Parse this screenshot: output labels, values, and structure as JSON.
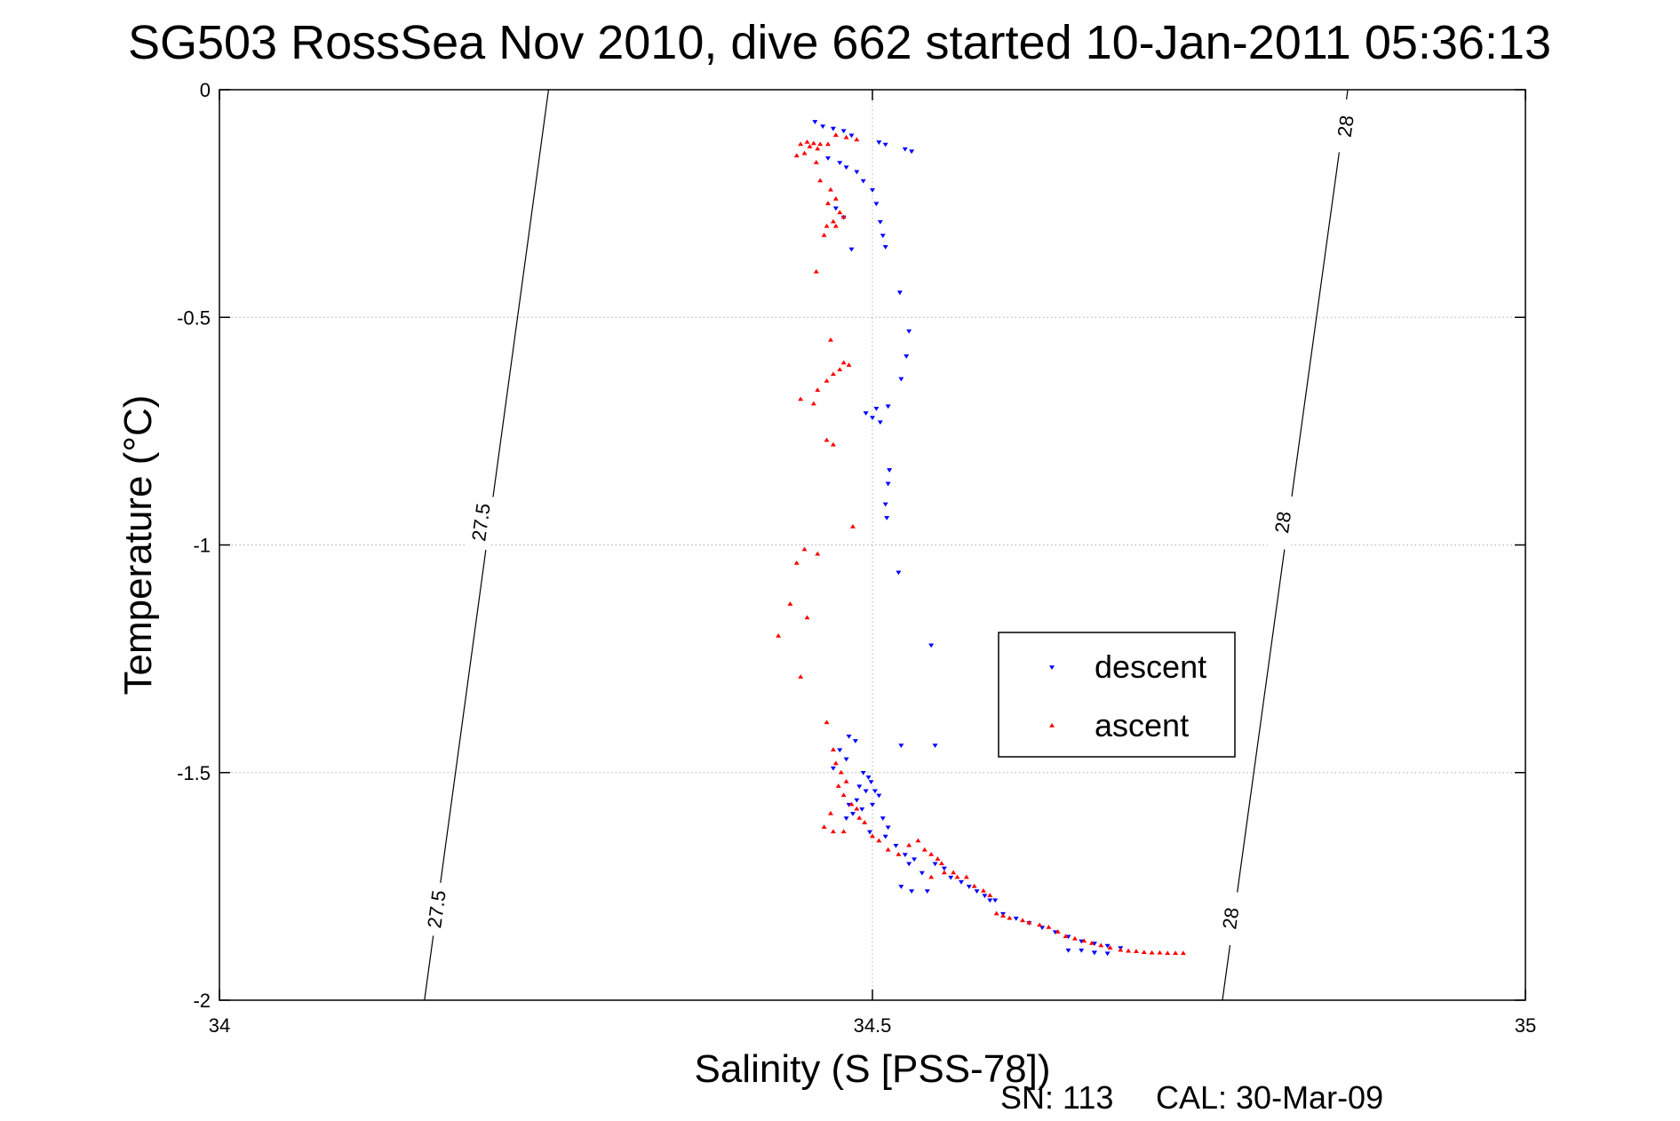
{
  "chart_data": {
    "type": "scatter",
    "title": "SG503 RossSea Nov 2010, dive 662 started 10-Jan-2011 05:36:13",
    "xlabel": "Salinity (S [PSS-78])",
    "ylabel": "Temperature (°C)",
    "xlim": [
      34,
      35
    ],
    "ylim": [
      -2,
      0
    ],
    "x_ticks": [
      34,
      34.5,
      35
    ],
    "x_tick_labels": [
      "34",
      "34.5",
      "35"
    ],
    "y_ticks": [
      0,
      -0.5,
      -1,
      -1.5,
      -2
    ],
    "y_tick_labels": [
      "0",
      "-0.5",
      "-1",
      "-1.5",
      "-2"
    ],
    "grid": true,
    "legend_position": "center-right",
    "density_contours": [
      {
        "label": "27.5",
        "points": [
          [
            34.252,
            0
          ],
          [
            34.157,
            -2
          ]
        ],
        "label_positions": [
          [
            34.2,
            -0.95
          ],
          [
            34.166,
            -1.8
          ]
        ]
      },
      {
        "label": "28",
        "points": [
          [
            34.864,
            0
          ],
          [
            34.768,
            -2
          ]
        ],
        "label_positions": [
          [
            34.862,
            -0.08
          ],
          [
            34.814,
            -0.95
          ],
          [
            34.774,
            -1.82
          ]
        ]
      }
    ],
    "series": [
      {
        "name": "descent",
        "color": "#0000ff",
        "marker": "triangle-down",
        "points": [
          [
            34.456,
            -0.07
          ],
          [
            34.462,
            -0.08
          ],
          [
            34.47,
            -0.085
          ],
          [
            34.478,
            -0.09
          ],
          [
            34.484,
            -0.1
          ],
          [
            34.505,
            -0.115
          ],
          [
            34.51,
            -0.12
          ],
          [
            34.525,
            -0.13
          ],
          [
            34.53,
            -0.135
          ],
          [
            34.466,
            -0.15
          ],
          [
            34.475,
            -0.16
          ],
          [
            34.48,
            -0.17
          ],
          [
            34.488,
            -0.18
          ],
          [
            34.493,
            -0.2
          ],
          [
            34.5,
            -0.22
          ],
          [
            34.503,
            -0.25
          ],
          [
            34.506,
            -0.29
          ],
          [
            34.508,
            -0.32
          ],
          [
            34.51,
            -0.345
          ],
          [
            34.472,
            -0.26
          ],
          [
            34.478,
            -0.28
          ],
          [
            34.484,
            -0.35
          ],
          [
            34.521,
            -0.445
          ],
          [
            34.528,
            -0.53
          ],
          [
            34.526,
            -0.585
          ],
          [
            34.522,
            -0.635
          ],
          [
            34.512,
            -0.695
          ],
          [
            34.503,
            -0.7
          ],
          [
            34.5,
            -0.72
          ],
          [
            34.506,
            -0.73
          ],
          [
            34.495,
            -0.71
          ],
          [
            34.513,
            -0.835
          ],
          [
            34.512,
            -0.865
          ],
          [
            34.51,
            -0.91
          ],
          [
            34.511,
            -0.94
          ],
          [
            34.52,
            -1.06
          ],
          [
            34.545,
            -1.22
          ],
          [
            34.548,
            -1.44
          ],
          [
            34.522,
            -1.44
          ],
          [
            34.482,
            -1.42
          ],
          [
            34.487,
            -1.43
          ],
          [
            34.475,
            -1.45
          ],
          [
            34.48,
            -1.47
          ],
          [
            34.47,
            -1.49
          ],
          [
            34.493,
            -1.5
          ],
          [
            34.497,
            -1.51
          ],
          [
            34.499,
            -1.52
          ],
          [
            34.49,
            -1.53
          ],
          [
            34.495,
            -1.54
          ],
          [
            34.502,
            -1.54
          ],
          [
            34.505,
            -1.55
          ],
          [
            34.488,
            -1.56
          ],
          [
            34.482,
            -1.57
          ],
          [
            34.5,
            -1.57
          ],
          [
            34.492,
            -1.58
          ],
          [
            34.485,
            -1.59
          ],
          [
            34.48,
            -1.6
          ],
          [
            34.508,
            -1.6
          ],
          [
            34.512,
            -1.62
          ],
          [
            34.498,
            -1.63
          ],
          [
            34.51,
            -1.64
          ],
          [
            34.518,
            -1.66
          ],
          [
            34.525,
            -1.68
          ],
          [
            34.532,
            -1.69
          ],
          [
            34.528,
            -1.7
          ],
          [
            34.538,
            -1.72
          ],
          [
            34.522,
            -1.75
          ],
          [
            34.53,
            -1.76
          ],
          [
            34.542,
            -1.76
          ],
          [
            34.548,
            -1.7
          ],
          [
            34.555,
            -1.71
          ],
          [
            34.56,
            -1.73
          ],
          [
            34.568,
            -1.74
          ],
          [
            34.574,
            -1.75
          ],
          [
            34.58,
            -1.76
          ],
          [
            34.586,
            -1.77
          ],
          [
            34.59,
            -1.78
          ],
          [
            34.594,
            -1.78
          ],
          [
            34.6,
            -1.81
          ],
          [
            34.61,
            -1.82
          ],
          [
            34.62,
            -1.83
          ],
          [
            34.63,
            -1.84
          ],
          [
            34.64,
            -1.85
          ],
          [
            34.65,
            -1.86
          ],
          [
            34.66,
            -1.87
          ],
          [
            34.67,
            -1.875
          ],
          [
            34.68,
            -1.88
          ],
          [
            34.69,
            -1.885
          ],
          [
            34.65,
            -1.89
          ],
          [
            34.66,
            -1.89
          ],
          [
            34.67,
            -1.895
          ],
          [
            34.68,
            -1.897
          ],
          [
            34.67,
            -1.895
          ]
        ]
      },
      {
        "name": "ascent",
        "color": "#ff0000",
        "marker": "triangle-up",
        "points": [
          [
            34.445,
            -0.12
          ],
          [
            34.45,
            -0.115
          ],
          [
            34.455,
            -0.118
          ],
          [
            34.46,
            -0.12
          ],
          [
            34.452,
            -0.125
          ],
          [
            34.458,
            -0.13
          ],
          [
            34.466,
            -0.12
          ],
          [
            34.448,
            -0.14
          ],
          [
            34.442,
            -0.145
          ],
          [
            34.472,
            -0.1
          ],
          [
            34.48,
            -0.105
          ],
          [
            34.488,
            -0.11
          ],
          [
            34.457,
            -0.16
          ],
          [
            34.46,
            -0.2
          ],
          [
            34.468,
            -0.22
          ],
          [
            34.472,
            -0.24
          ],
          [
            34.466,
            -0.25
          ],
          [
            34.475,
            -0.27
          ],
          [
            34.478,
            -0.28
          ],
          [
            34.47,
            -0.29
          ],
          [
            34.465,
            -0.3
          ],
          [
            34.472,
            -0.3
          ],
          [
            34.463,
            -0.32
          ],
          [
            34.457,
            -0.4
          ],
          [
            34.468,
            -0.55
          ],
          [
            34.478,
            -0.6
          ],
          [
            34.482,
            -0.605
          ],
          [
            34.475,
            -0.615
          ],
          [
            34.47,
            -0.625
          ],
          [
            34.465,
            -0.64
          ],
          [
            34.458,
            -0.66
          ],
          [
            34.445,
            -0.68
          ],
          [
            34.455,
            -0.69
          ],
          [
            34.465,
            -0.77
          ],
          [
            34.47,
            -0.78
          ],
          [
            34.485,
            -0.96
          ],
          [
            34.448,
            -1.01
          ],
          [
            34.458,
            -1.02
          ],
          [
            34.442,
            -1.04
          ],
          [
            34.437,
            -1.13
          ],
          [
            34.45,
            -1.16
          ],
          [
            34.428,
            -1.2
          ],
          [
            34.445,
            -1.29
          ],
          [
            34.465,
            -1.39
          ],
          [
            34.47,
            -1.45
          ],
          [
            34.472,
            -1.48
          ],
          [
            34.476,
            -1.5
          ],
          [
            34.48,
            -1.52
          ],
          [
            34.474,
            -1.53
          ],
          [
            34.478,
            -1.55
          ],
          [
            34.484,
            -1.57
          ],
          [
            34.488,
            -1.58
          ],
          [
            34.49,
            -1.6
          ],
          [
            34.494,
            -1.61
          ],
          [
            34.468,
            -1.59
          ],
          [
            34.463,
            -1.62
          ],
          [
            34.47,
            -1.63
          ],
          [
            34.478,
            -1.63
          ],
          [
            34.5,
            -1.64
          ],
          [
            34.505,
            -1.65
          ],
          [
            34.512,
            -1.67
          ],
          [
            34.52,
            -1.68
          ],
          [
            34.528,
            -1.66
          ],
          [
            34.535,
            -1.65
          ],
          [
            34.54,
            -1.67
          ],
          [
            34.545,
            -1.68
          ],
          [
            34.55,
            -1.69
          ],
          [
            34.553,
            -1.7
          ],
          [
            34.545,
            -1.73
          ],
          [
            34.555,
            -1.72
          ],
          [
            34.562,
            -1.72
          ],
          [
            34.565,
            -1.73
          ],
          [
            34.572,
            -1.73
          ],
          [
            34.578,
            -1.75
          ],
          [
            34.585,
            -1.76
          ],
          [
            34.59,
            -1.77
          ],
          [
            34.595,
            -1.81
          ],
          [
            34.6,
            -1.815
          ],
          [
            34.605,
            -1.82
          ],
          [
            34.615,
            -1.825
          ],
          [
            34.62,
            -1.83
          ],
          [
            34.628,
            -1.835
          ],
          [
            34.635,
            -1.84
          ],
          [
            34.642,
            -1.85
          ],
          [
            34.648,
            -1.86
          ],
          [
            34.655,
            -1.865
          ],
          [
            34.662,
            -1.87
          ],
          [
            34.668,
            -1.875
          ],
          [
            34.675,
            -1.88
          ],
          [
            34.682,
            -1.885
          ],
          [
            34.69,
            -1.89
          ],
          [
            34.696,
            -1.892
          ],
          [
            34.702,
            -1.893
          ],
          [
            34.708,
            -1.895
          ],
          [
            34.714,
            -1.896
          ],
          [
            34.72,
            -1.896
          ],
          [
            34.726,
            -1.897
          ],
          [
            34.732,
            -1.897
          ],
          [
            34.738,
            -1.897
          ]
        ]
      }
    ]
  },
  "footer": {
    "serial": "SN: 113",
    "calibration": "CAL: 30-Mar-09"
  },
  "colors": {
    "descent": "#0000ff",
    "ascent": "#ff0000",
    "grid": "#b0b0b0",
    "axes": "#000000"
  }
}
